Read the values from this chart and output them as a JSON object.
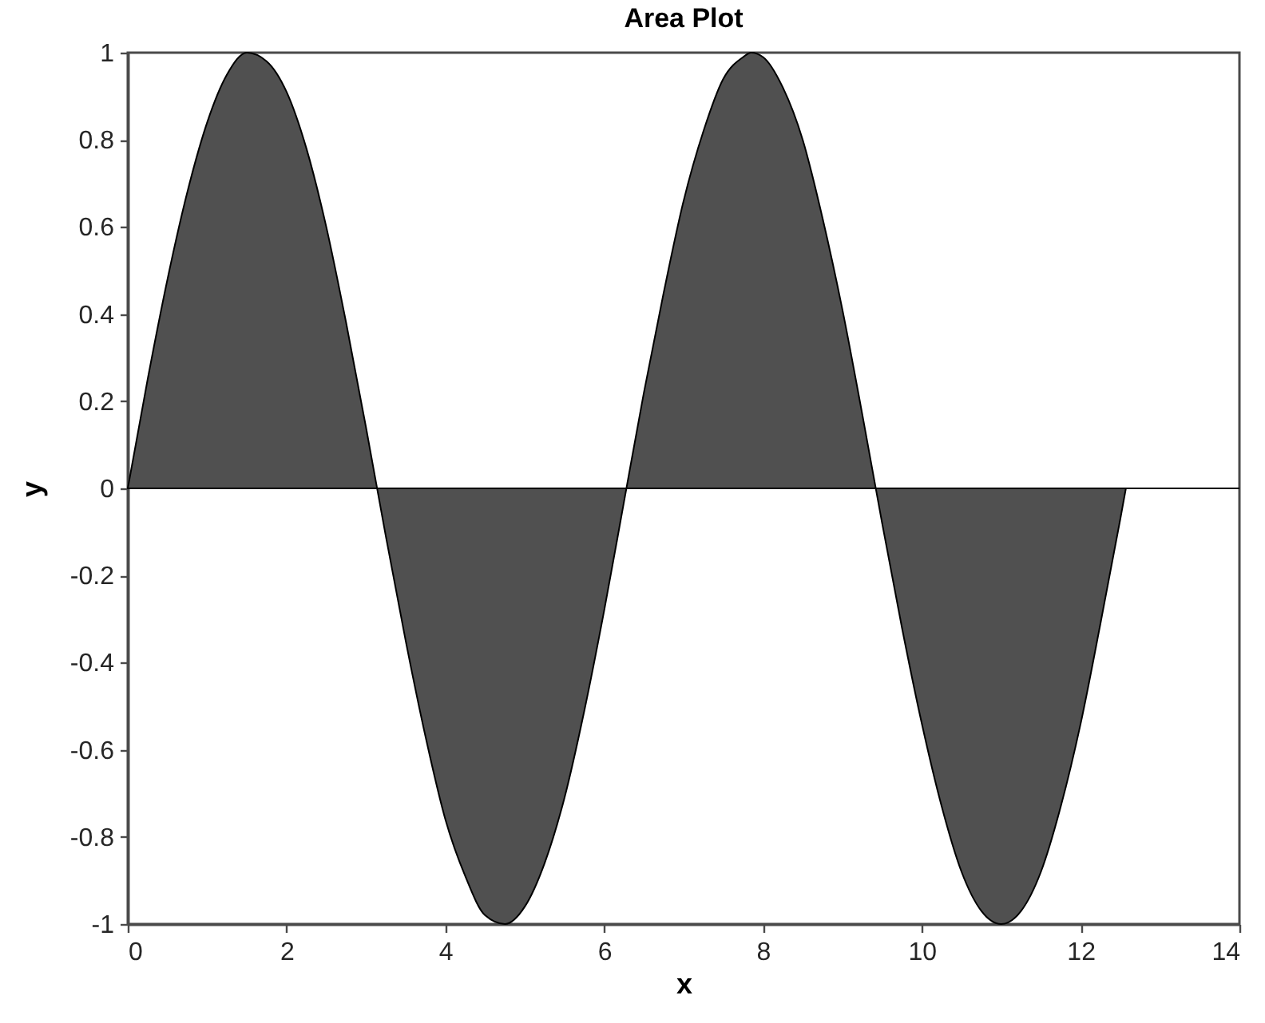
{
  "chart_data": {
    "type": "area",
    "title": "Area Plot",
    "xlabel": "x",
    "ylabel": "y",
    "color": "#505050",
    "x": [
      0,
      0.25,
      0.5,
      0.75,
      1,
      1.25,
      1.5,
      1.75,
      2,
      2.25,
      2.5,
      2.75,
      3,
      3.25,
      3.5,
      3.75,
      4,
      4.25,
      4.5,
      4.75,
      5,
      5.25,
      5.5,
      5.75,
      6,
      6.25,
      6.5,
      6.75,
      7,
      7.25,
      7.5,
      7.75,
      7.85,
      8,
      8.25,
      8.5,
      8.75,
      9,
      9.25,
      9.5,
      9.75,
      10,
      10.25,
      10.5,
      10.75,
      11,
      11.25,
      11.5,
      11.75,
      12,
      12.25,
      12.5,
      12.57
    ],
    "values": [
      0,
      0.25,
      0.48,
      0.68,
      0.84,
      0.95,
      1.0,
      0.98,
      0.91,
      0.78,
      0.6,
      0.38,
      0.14,
      -0.11,
      -0.35,
      -0.57,
      -0.76,
      -0.89,
      -0.98,
      -1.0,
      -0.96,
      -0.86,
      -0.71,
      -0.51,
      -0.28,
      -0.03,
      0.22,
      0.45,
      0.66,
      0.82,
      0.94,
      0.99,
      1.0,
      0.99,
      0.92,
      0.8,
      0.62,
      0.41,
      0.17,
      -0.08,
      -0.32,
      -0.54,
      -0.73,
      -0.88,
      -0.97,
      -1.0,
      -0.97,
      -0.88,
      -0.73,
      -0.54,
      -0.31,
      -0.07,
      0
    ],
    "xlim": [
      0,
      14
    ],
    "xticks": [
      0,
      2,
      4,
      6,
      8,
      10,
      12,
      14
    ],
    "ylim": [
      -1,
      1
    ],
    "yticks": [
      -1,
      -0.8,
      -0.6,
      -0.4,
      -0.2,
      0,
      0.2,
      0.4,
      0.6,
      0.8,
      1
    ],
    "ref_lines": [
      {
        "axis": "y",
        "value": 0,
        "color": "#000000"
      }
    ]
  }
}
